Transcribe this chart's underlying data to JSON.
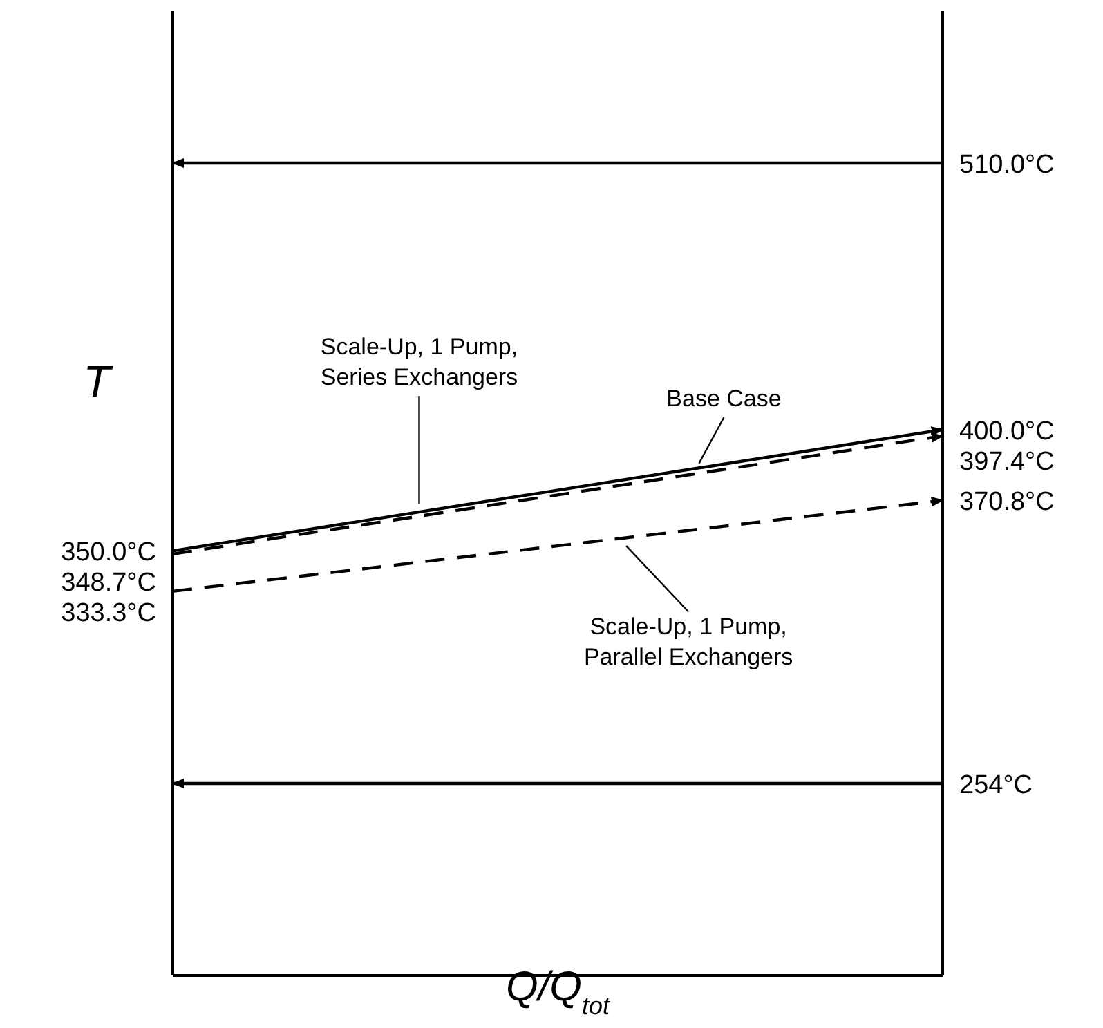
{
  "chart_data": {
    "type": "line",
    "xlabel": "Q/Q$_{tot}$",
    "ylabel": "T",
    "categories": [
      null,
      null
    ],
    "series": [
      {
        "color": "#000000",
        "line_style": "solid",
        "values": [
          510.0,
          510.0
        ],
        "value_labels": [
          null,
          "510.0°C"
        ]
      },
      {
        "color": "#000000",
        "line_style": "solid",
        "values": [
          254,
          254
        ],
        "value_labels": [
          null,
          "254°C"
        ]
      },
      {
        "name": "Base Case",
        "color": "#000000",
        "line_style": "solid",
        "values": [
          350.0,
          400.0
        ],
        "value_labels": [
          "350.0°C",
          "400.0°C"
        ]
      },
      {
        "name": "Scale-Up, 1 Pump, Series Exchangers",
        "color": "#000000",
        "line_style": "dashed",
        "values": [
          348.7,
          397.4
        ],
        "value_labels": [
          "348.7°C",
          "397.4°C"
        ]
      },
      {
        "name": "Scale-Up, 1 Pump, Parallel Exchangers",
        "color": "#000000",
        "line_style": "dashed",
        "values": [
          333.3,
          370.8
        ],
        "value_labels": [
          "333.3°C",
          "370.8°C"
        ]
      }
    ]
  }
}
